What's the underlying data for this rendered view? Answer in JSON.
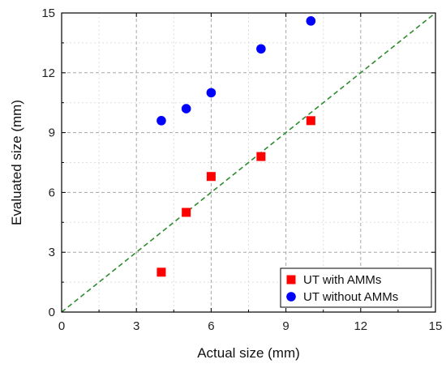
{
  "chart_data": {
    "type": "scatter",
    "title": "",
    "xlabel": "Actual size (mm)",
    "ylabel": "Evaluated size (mm)",
    "xlim": [
      0,
      15
    ],
    "ylim": [
      0,
      15
    ],
    "xticks": [
      "0",
      "3",
      "6",
      "9",
      "12",
      "15"
    ],
    "yticks": [
      "0",
      "3",
      "6",
      "9",
      "12",
      "15"
    ],
    "grid": true,
    "legend_position": "bottom-right",
    "reference_line": {
      "style": "dashed",
      "color": "#2e8b2e",
      "from": [
        0,
        0
      ],
      "to": [
        15,
        15
      ]
    },
    "series": [
      {
        "name": "UT with AMMs",
        "marker": "square",
        "color": "#ff0000",
        "x": [
          4,
          5,
          6,
          8,
          10
        ],
        "y": [
          2.0,
          5.0,
          6.8,
          7.8,
          9.6
        ]
      },
      {
        "name": "UT without AMMs",
        "marker": "circle",
        "color": "#0000ff",
        "x": [
          4,
          5,
          6,
          8,
          10
        ],
        "y": [
          9.6,
          10.2,
          11.0,
          13.2,
          14.6
        ]
      }
    ]
  }
}
